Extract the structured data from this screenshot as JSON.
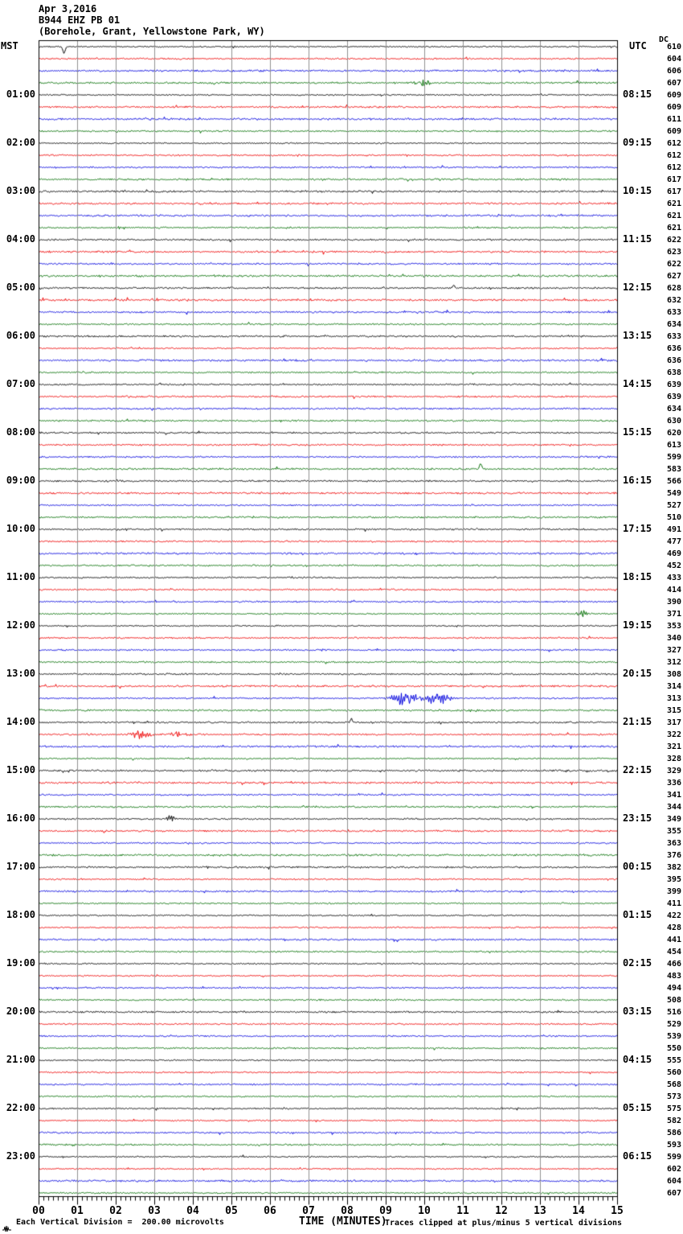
{
  "header": {
    "date": "Apr 3,2016",
    "station": "B944 EHZ PB 01",
    "location": "(Borehole, Grant, Yellowstone Park, WY)"
  },
  "axes": {
    "left_header": "MST",
    "right_header": "UTC",
    "dc_header": "DC"
  },
  "footer": {
    "scale_note": "Each Vertical Division =  200.00 microvolts",
    "x_axis_title": "TIME (MINUTES)",
    "clip_note": "Traces clipped at plus/minus 5 vertical divisions",
    "icon": "waveform-icon"
  },
  "chart_data": {
    "type": "line",
    "subtype": "helicorder-seismogram",
    "title": "B944 EHZ PB 01 (Borehole, Grant, Yellowstone Park, WY) Apr 3,2016",
    "xlabel": "TIME (MINUTES)",
    "x_range": [
      0,
      15
    ],
    "minutes_per_line": 15,
    "x_tick_labels": [
      "00",
      "01",
      "02",
      "03",
      "04",
      "05",
      "06",
      "07",
      "08",
      "09",
      "10",
      "11",
      "12",
      "13",
      "14",
      "15"
    ],
    "grid": true,
    "grid_color": "#909090",
    "trace_color_cycle": [
      "#000000",
      "#ee0000",
      "#0000dd",
      "#006e00"
    ],
    "vertical_division_microvolts": 200.0,
    "clip_divisions": 5,
    "rows": [
      {
        "dc": 610,
        "mst": "",
        "utc": ""
      },
      {
        "dc": 604,
        "mst": "",
        "utc": ""
      },
      {
        "dc": 606,
        "mst": "",
        "utc": ""
      },
      {
        "dc": 607,
        "mst": "",
        "utc": ""
      },
      {
        "dc": 609,
        "mst": "01:00",
        "utc": "08:15"
      },
      {
        "dc": 609,
        "mst": "",
        "utc": ""
      },
      {
        "dc": 611,
        "mst": "",
        "utc": ""
      },
      {
        "dc": 609,
        "mst": "",
        "utc": ""
      },
      {
        "dc": 612,
        "mst": "02:00",
        "utc": "09:15"
      },
      {
        "dc": 612,
        "mst": "",
        "utc": ""
      },
      {
        "dc": 612,
        "mst": "",
        "utc": ""
      },
      {
        "dc": 617,
        "mst": "",
        "utc": ""
      },
      {
        "dc": 617,
        "mst": "03:00",
        "utc": "10:15"
      },
      {
        "dc": 621,
        "mst": "",
        "utc": ""
      },
      {
        "dc": 621,
        "mst": "",
        "utc": ""
      },
      {
        "dc": 621,
        "mst": "",
        "utc": ""
      },
      {
        "dc": 622,
        "mst": "04:00",
        "utc": "11:15"
      },
      {
        "dc": 623,
        "mst": "",
        "utc": ""
      },
      {
        "dc": 622,
        "mst": "",
        "utc": ""
      },
      {
        "dc": 627,
        "mst": "",
        "utc": ""
      },
      {
        "dc": 628,
        "mst": "05:00",
        "utc": "12:15"
      },
      {
        "dc": 632,
        "mst": "",
        "utc": ""
      },
      {
        "dc": 633,
        "mst": "",
        "utc": ""
      },
      {
        "dc": 634,
        "mst": "",
        "utc": ""
      },
      {
        "dc": 633,
        "mst": "06:00",
        "utc": "13:15"
      },
      {
        "dc": 636,
        "mst": "",
        "utc": ""
      },
      {
        "dc": 636,
        "mst": "",
        "utc": ""
      },
      {
        "dc": 638,
        "mst": "",
        "utc": ""
      },
      {
        "dc": 639,
        "mst": "07:00",
        "utc": "14:15"
      },
      {
        "dc": 639,
        "mst": "",
        "utc": ""
      },
      {
        "dc": 634,
        "mst": "",
        "utc": ""
      },
      {
        "dc": 630,
        "mst": "",
        "utc": ""
      },
      {
        "dc": 620,
        "mst": "08:00",
        "utc": "15:15"
      },
      {
        "dc": 613,
        "mst": "",
        "utc": ""
      },
      {
        "dc": 599,
        "mst": "",
        "utc": ""
      },
      {
        "dc": 583,
        "mst": "",
        "utc": ""
      },
      {
        "dc": 566,
        "mst": "09:00",
        "utc": "16:15"
      },
      {
        "dc": 549,
        "mst": "",
        "utc": ""
      },
      {
        "dc": 527,
        "mst": "",
        "utc": ""
      },
      {
        "dc": 510,
        "mst": "",
        "utc": ""
      },
      {
        "dc": 491,
        "mst": "10:00",
        "utc": "17:15"
      },
      {
        "dc": 477,
        "mst": "",
        "utc": ""
      },
      {
        "dc": 469,
        "mst": "",
        "utc": ""
      },
      {
        "dc": 452,
        "mst": "",
        "utc": ""
      },
      {
        "dc": 433,
        "mst": "11:00",
        "utc": "18:15"
      },
      {
        "dc": 414,
        "mst": "",
        "utc": ""
      },
      {
        "dc": 390,
        "mst": "",
        "utc": ""
      },
      {
        "dc": 371,
        "mst": "",
        "utc": ""
      },
      {
        "dc": 353,
        "mst": "12:00",
        "utc": "19:15"
      },
      {
        "dc": 340,
        "mst": "",
        "utc": ""
      },
      {
        "dc": 327,
        "mst": "",
        "utc": ""
      },
      {
        "dc": 312,
        "mst": "",
        "utc": ""
      },
      {
        "dc": 308,
        "mst": "13:00",
        "utc": "20:15"
      },
      {
        "dc": 314,
        "mst": "",
        "utc": ""
      },
      {
        "dc": 313,
        "mst": "",
        "utc": ""
      },
      {
        "dc": 315,
        "mst": "",
        "utc": ""
      },
      {
        "dc": 317,
        "mst": "14:00",
        "utc": "21:15"
      },
      {
        "dc": 322,
        "mst": "",
        "utc": ""
      },
      {
        "dc": 321,
        "mst": "",
        "utc": ""
      },
      {
        "dc": 328,
        "mst": "",
        "utc": ""
      },
      {
        "dc": 329,
        "mst": "15:00",
        "utc": "22:15"
      },
      {
        "dc": 336,
        "mst": "",
        "utc": ""
      },
      {
        "dc": 341,
        "mst": "",
        "utc": ""
      },
      {
        "dc": 344,
        "mst": "",
        "utc": ""
      },
      {
        "dc": 349,
        "mst": "16:00",
        "utc": "23:15"
      },
      {
        "dc": 355,
        "mst": "",
        "utc": ""
      },
      {
        "dc": 363,
        "mst": "",
        "utc": ""
      },
      {
        "dc": 376,
        "mst": "",
        "utc": ""
      },
      {
        "dc": 382,
        "mst": "17:00",
        "utc": "00:15"
      },
      {
        "dc": 395,
        "mst": "",
        "utc": ""
      },
      {
        "dc": 399,
        "mst": "",
        "utc": ""
      },
      {
        "dc": 411,
        "mst": "",
        "utc": ""
      },
      {
        "dc": 422,
        "mst": "18:00",
        "utc": "01:15"
      },
      {
        "dc": 428,
        "mst": "",
        "utc": ""
      },
      {
        "dc": 441,
        "mst": "",
        "utc": ""
      },
      {
        "dc": 454,
        "mst": "",
        "utc": ""
      },
      {
        "dc": 466,
        "mst": "19:00",
        "utc": "02:15"
      },
      {
        "dc": 483,
        "mst": "",
        "utc": ""
      },
      {
        "dc": 494,
        "mst": "",
        "utc": ""
      },
      {
        "dc": 508,
        "mst": "",
        "utc": ""
      },
      {
        "dc": 516,
        "mst": "20:00",
        "utc": "03:15"
      },
      {
        "dc": 529,
        "mst": "",
        "utc": ""
      },
      {
        "dc": 539,
        "mst": "",
        "utc": ""
      },
      {
        "dc": 550,
        "mst": "",
        "utc": ""
      },
      {
        "dc": 555,
        "mst": "21:00",
        "utc": "04:15"
      },
      {
        "dc": 560,
        "mst": "",
        "utc": ""
      },
      {
        "dc": 568,
        "mst": "",
        "utc": ""
      },
      {
        "dc": 573,
        "mst": "",
        "utc": ""
      },
      {
        "dc": 575,
        "mst": "22:00",
        "utc": "05:15"
      },
      {
        "dc": 582,
        "mst": "",
        "utc": ""
      },
      {
        "dc": 586,
        "mst": "",
        "utc": ""
      },
      {
        "dc": 593,
        "mst": "",
        "utc": ""
      },
      {
        "dc": 599,
        "mst": "23:00",
        "utc": "06:15"
      },
      {
        "dc": 602,
        "mst": "",
        "utc": ""
      },
      {
        "dc": 604,
        "mst": "",
        "utc": ""
      },
      {
        "dc": 607,
        "mst": "",
        "utc": ""
      }
    ],
    "events": [
      {
        "row": 0,
        "type": "spike",
        "minute": 0.65,
        "amp": -9,
        "width": 0.07
      },
      {
        "row": 3,
        "type": "burst",
        "minute": 9.9,
        "amp": 4,
        "width": 0.25
      },
      {
        "row": 20,
        "type": "spike",
        "minute": 10.75,
        "amp": 4,
        "width": 0.05
      },
      {
        "row": 35,
        "type": "spike",
        "minute": 11.45,
        "amp": 7,
        "width": 0.06
      },
      {
        "row": 47,
        "type": "burst",
        "minute": 14.1,
        "amp": 5,
        "width": 0.15
      },
      {
        "row": 54,
        "type": "burst",
        "minute": 9.5,
        "amp": 9,
        "width": 0.35
      },
      {
        "row": 54,
        "type": "burst",
        "minute": 10.35,
        "amp": 8,
        "width": 0.3
      },
      {
        "row": 56,
        "type": "spike",
        "minute": 8.1,
        "amp": 6,
        "width": 0.05
      },
      {
        "row": 57,
        "type": "burst",
        "minute": 2.65,
        "amp": 5,
        "width": 0.3
      },
      {
        "row": 57,
        "type": "burst",
        "minute": 3.65,
        "amp": 4,
        "width": 0.25
      },
      {
        "row": 64,
        "type": "burst",
        "minute": 3.45,
        "amp": 5,
        "width": 0.15
      }
    ]
  }
}
